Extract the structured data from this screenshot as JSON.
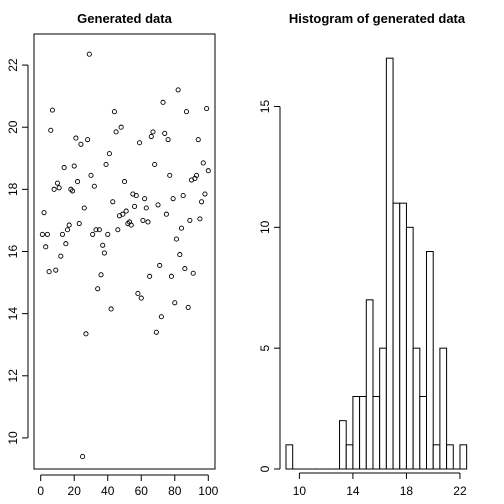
{
  "chart_data": [
    {
      "type": "scatter",
      "title": "Generated data",
      "xlabel": "",
      "ylabel": "",
      "xlim": [
        -4,
        104
      ],
      "ylim": [
        9.0,
        23.0
      ],
      "xticks": [
        0,
        20,
        40,
        60,
        80,
        100
      ],
      "yticks": [
        10,
        12,
        14,
        16,
        18,
        20,
        22
      ],
      "grid": false,
      "points": [
        {
          "x": 1,
          "y": 16.55
        },
        {
          "x": 2,
          "y": 17.25
        },
        {
          "x": 3,
          "y": 16.15
        },
        {
          "x": 4,
          "y": 16.55
        },
        {
          "x": 5,
          "y": 15.35
        },
        {
          "x": 6,
          "y": 19.9
        },
        {
          "x": 7,
          "y": 20.55
        },
        {
          "x": 8,
          "y": 18.0
        },
        {
          "x": 9,
          "y": 15.4
        },
        {
          "x": 10,
          "y": 18.2
        },
        {
          "x": 11,
          "y": 18.05
        },
        {
          "x": 12,
          "y": 15.85
        },
        {
          "x": 13,
          "y": 16.55
        },
        {
          "x": 14,
          "y": 18.7
        },
        {
          "x": 15,
          "y": 16.25
        },
        {
          "x": 16,
          "y": 16.7
        },
        {
          "x": 17,
          "y": 16.85
        },
        {
          "x": 18,
          "y": 18.0
        },
        {
          "x": 19,
          "y": 17.95
        },
        {
          "x": 20,
          "y": 18.75
        },
        {
          "x": 21,
          "y": 19.65
        },
        {
          "x": 22,
          "y": 18.25
        },
        {
          "x": 23,
          "y": 16.9
        },
        {
          "x": 24,
          "y": 19.45
        },
        {
          "x": 25,
          "y": 9.4
        },
        {
          "x": 26,
          "y": 17.4
        },
        {
          "x": 27,
          "y": 13.35
        },
        {
          "x": 28,
          "y": 19.6
        },
        {
          "x": 29,
          "y": 22.35
        },
        {
          "x": 30,
          "y": 18.45
        },
        {
          "x": 31,
          "y": 16.55
        },
        {
          "x": 32,
          "y": 18.1
        },
        {
          "x": 33,
          "y": 16.7
        },
        {
          "x": 34,
          "y": 14.8
        },
        {
          "x": 35,
          "y": 16.7
        },
        {
          "x": 36,
          "y": 15.25
        },
        {
          "x": 37,
          "y": 16.2
        },
        {
          "x": 38,
          "y": 15.95
        },
        {
          "x": 39,
          "y": 18.8
        },
        {
          "x": 40,
          "y": 16.55
        },
        {
          "x": 41,
          "y": 19.15
        },
        {
          "x": 42,
          "y": 14.15
        },
        {
          "x": 43,
          "y": 17.6
        },
        {
          "x": 44,
          "y": 20.5
        },
        {
          "x": 45,
          "y": 19.85
        },
        {
          "x": 46,
          "y": 16.7
        },
        {
          "x": 47,
          "y": 17.15
        },
        {
          "x": 48,
          "y": 20.0
        },
        {
          "x": 49,
          "y": 17.2
        },
        {
          "x": 50,
          "y": 18.25
        },
        {
          "x": 51,
          "y": 17.3
        },
        {
          "x": 52,
          "y": 16.9
        },
        {
          "x": 53,
          "y": 16.95
        },
        {
          "x": 54,
          "y": 16.85
        },
        {
          "x": 55,
          "y": 17.85
        },
        {
          "x": 56,
          "y": 17.45
        },
        {
          "x": 57,
          "y": 17.8
        },
        {
          "x": 58,
          "y": 14.65
        },
        {
          "x": 59,
          "y": 19.5
        },
        {
          "x": 60,
          "y": 14.5
        },
        {
          "x": 61,
          "y": 17.0
        },
        {
          "x": 62,
          "y": 17.7
        },
        {
          "x": 63,
          "y": 17.4
        },
        {
          "x": 64,
          "y": 16.95
        },
        {
          "x": 65,
          "y": 15.2
        },
        {
          "x": 66,
          "y": 19.7
        },
        {
          "x": 67,
          "y": 19.85
        },
        {
          "x": 68,
          "y": 18.8
        },
        {
          "x": 69,
          "y": 13.4
        },
        {
          "x": 70,
          "y": 17.5
        },
        {
          "x": 71,
          "y": 15.55
        },
        {
          "x": 72,
          "y": 13.9
        },
        {
          "x": 73,
          "y": 20.8
        },
        {
          "x": 74,
          "y": 19.8
        },
        {
          "x": 75,
          "y": 17.2
        },
        {
          "x": 76,
          "y": 19.6
        },
        {
          "x": 77,
          "y": 18.45
        },
        {
          "x": 78,
          "y": 15.2
        },
        {
          "x": 79,
          "y": 17.7
        },
        {
          "x": 80,
          "y": 14.35
        },
        {
          "x": 81,
          "y": 16.4
        },
        {
          "x": 82,
          "y": 21.2
        },
        {
          "x": 83,
          "y": 15.9
        },
        {
          "x": 84,
          "y": 16.75
        },
        {
          "x": 85,
          "y": 17.8
        },
        {
          "x": 86,
          "y": 15.45
        },
        {
          "x": 87,
          "y": 20.5
        },
        {
          "x": 88,
          "y": 14.2
        },
        {
          "x": 89,
          "y": 17.0
        },
        {
          "x": 90,
          "y": 18.3
        },
        {
          "x": 91,
          "y": 15.3
        },
        {
          "x": 92,
          "y": 18.35
        },
        {
          "x": 93,
          "y": 18.45
        },
        {
          "x": 94,
          "y": 19.6
        },
        {
          "x": 95,
          "y": 17.05
        },
        {
          "x": 96,
          "y": 17.6
        },
        {
          "x": 97,
          "y": 18.85
        },
        {
          "x": 98,
          "y": 17.85
        },
        {
          "x": 99,
          "y": 20.6
        },
        {
          "x": 100,
          "y": 18.6
        }
      ]
    },
    {
      "type": "bar",
      "subtype": "histogram",
      "title": "Histogram of generated data",
      "xlabel": "",
      "ylabel": "",
      "xlim": [
        9.0,
        22.6
      ],
      "ylim": [
        0,
        18
      ],
      "xticks": [
        10,
        14,
        18,
        22
      ],
      "yticks": [
        0,
        5,
        10,
        15
      ],
      "grid": false,
      "bin_width": 0.5,
      "bins": [
        {
          "start": 9.0,
          "end": 9.5,
          "count": 1
        },
        {
          "start": 9.5,
          "end": 10.0,
          "count": 0
        },
        {
          "start": 10.0,
          "end": 10.5,
          "count": 0
        },
        {
          "start": 10.5,
          "end": 11.0,
          "count": 0
        },
        {
          "start": 11.0,
          "end": 11.5,
          "count": 0
        },
        {
          "start": 11.5,
          "end": 12.0,
          "count": 0
        },
        {
          "start": 12.0,
          "end": 12.5,
          "count": 0
        },
        {
          "start": 12.5,
          "end": 13.0,
          "count": 0
        },
        {
          "start": 13.0,
          "end": 13.5,
          "count": 2
        },
        {
          "start": 13.5,
          "end": 14.0,
          "count": 1
        },
        {
          "start": 14.0,
          "end": 14.5,
          "count": 3
        },
        {
          "start": 14.5,
          "end": 15.0,
          "count": 3
        },
        {
          "start": 15.0,
          "end": 15.5,
          "count": 7
        },
        {
          "start": 15.5,
          "end": 16.0,
          "count": 3
        },
        {
          "start": 16.0,
          "end": 16.5,
          "count": 5
        },
        {
          "start": 16.5,
          "end": 17.0,
          "count": 17
        },
        {
          "start": 17.0,
          "end": 17.5,
          "count": 11
        },
        {
          "start": 17.5,
          "end": 18.0,
          "count": 11
        },
        {
          "start": 18.0,
          "end": 18.5,
          "count": 10
        },
        {
          "start": 18.5,
          "end": 19.0,
          "count": 5
        },
        {
          "start": 19.0,
          "end": 19.5,
          "count": 3
        },
        {
          "start": 19.5,
          "end": 20.0,
          "count": 9
        },
        {
          "start": 20.0,
          "end": 20.5,
          "count": 1
        },
        {
          "start": 20.5,
          "end": 21.0,
          "count": 5
        },
        {
          "start": 21.0,
          "end": 21.5,
          "count": 1
        },
        {
          "start": 21.5,
          "end": 22.0,
          "count": 0
        },
        {
          "start": 22.0,
          "end": 22.5,
          "count": 1
        }
      ]
    }
  ]
}
